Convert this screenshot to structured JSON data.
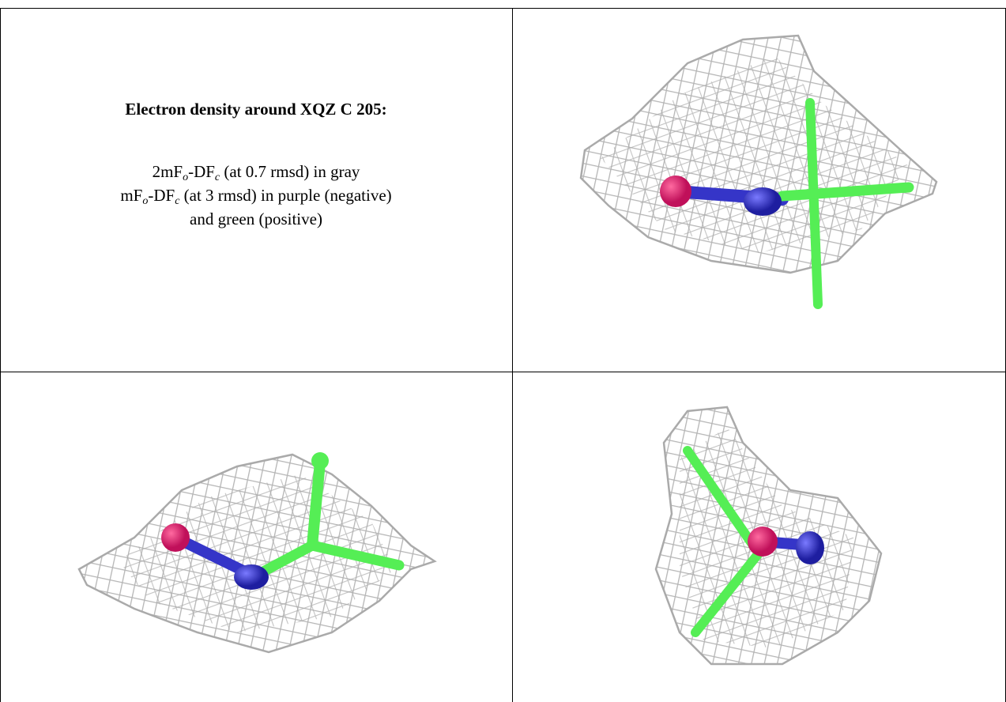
{
  "caption": {
    "title": "Electron density around XQZ C 205:",
    "line1": [
      "2mF",
      "o",
      "-DF",
      "c",
      " (at 0.7 rmsd) in gray"
    ],
    "line2": [
      "mF",
      "o",
      "-DF",
      "c",
      " (at 3 rmsd) in purple (negative)"
    ],
    "line3": "and green (positive)"
  }
}
